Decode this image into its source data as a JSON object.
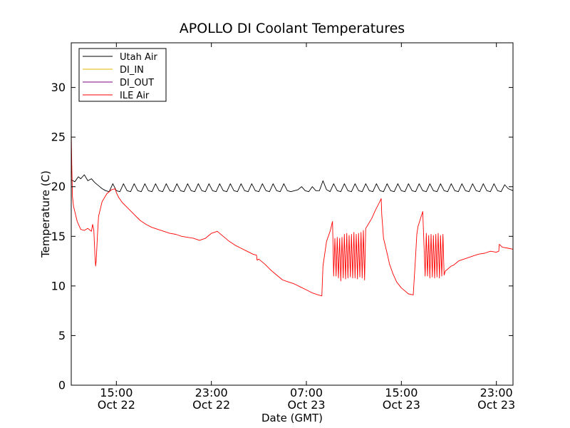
{
  "chart_data": {
    "type": "line",
    "title": "APOLLO DI Coolant Temperatures",
    "xlabel": "Date (GMT)",
    "ylabel": "Temperature (C)",
    "x_unit": "hours since Oct 22 00:00 GMT",
    "xlim": [
      11.2,
      48.4
    ],
    "ylim": [
      0,
      34.5
    ],
    "yticks": [
      0,
      5,
      10,
      15,
      20,
      25,
      30
    ],
    "xticks": [
      {
        "x": 15,
        "time": "15:00",
        "date": "Oct 22"
      },
      {
        "x": 23,
        "time": "23:00",
        "date": "Oct 22"
      },
      {
        "x": 31,
        "time": "07:00",
        "date": "Oct 23"
      },
      {
        "x": 39,
        "time": "15:00",
        "date": "Oct 23"
      },
      {
        "x": 47,
        "time": "23:00",
        "date": "Oct 23"
      }
    ],
    "grid": false,
    "legend_position": "top-left",
    "series": [
      {
        "name": "Utah Air",
        "color": "#000000",
        "x": [
          11.2,
          11.5,
          11.8,
          12.0,
          12.3,
          12.6,
          12.9,
          13.2,
          13.5,
          13.8,
          14.1,
          14.4,
          14.7,
          15.0,
          15.3,
          15.6,
          15.9,
          16.2,
          16.5,
          16.8,
          17.1,
          17.4,
          17.7,
          18.0,
          18.3,
          18.6,
          18.9,
          19.2,
          19.5,
          19.8,
          20.1,
          20.4,
          20.7,
          21.0,
          21.3,
          21.6,
          21.9,
          22.2,
          22.5,
          22.8,
          23.1,
          23.4,
          23.7,
          24.0,
          24.3,
          24.6,
          24.9,
          25.2,
          25.5,
          25.8,
          26.1,
          26.4,
          26.7,
          27.0,
          27.3,
          27.6,
          27.9,
          28.2,
          28.5,
          28.8,
          29.1,
          29.4,
          29.7,
          30.0,
          30.3,
          30.6,
          30.9,
          31.2,
          31.5,
          31.8,
          32.1,
          32.4,
          32.7,
          33.0,
          33.3,
          33.6,
          33.9,
          34.2,
          34.5,
          34.8,
          35.1,
          35.4,
          35.7,
          36.0,
          36.3,
          36.6,
          36.9,
          37.2,
          37.5,
          37.8,
          38.1,
          38.4,
          38.7,
          39.0,
          39.3,
          39.6,
          39.9,
          40.2,
          40.5,
          40.8,
          41.1,
          41.4,
          41.7,
          42.0,
          42.3,
          42.6,
          42.9,
          43.2,
          43.5,
          43.8,
          44.1,
          44.4,
          44.7,
          45.0,
          45.3,
          45.6,
          45.9,
          46.2,
          46.5,
          46.8,
          47.1,
          47.4,
          47.7,
          48.0,
          48.4
        ],
        "y": [
          20.7,
          20.5,
          21.0,
          20.8,
          21.2,
          20.6,
          20.8,
          20.4,
          20.1,
          19.8,
          19.6,
          19.5,
          20.3,
          19.6,
          19.5,
          20.3,
          19.6,
          19.5,
          20.3,
          19.6,
          19.5,
          20.3,
          19.6,
          19.5,
          20.3,
          19.6,
          19.5,
          20.3,
          19.6,
          19.5,
          20.3,
          19.6,
          19.5,
          20.3,
          19.6,
          19.5,
          20.3,
          19.6,
          19.5,
          20.3,
          19.6,
          19.5,
          20.3,
          19.6,
          19.5,
          20.3,
          19.6,
          19.5,
          20.3,
          19.6,
          19.5,
          20.3,
          19.6,
          19.5,
          20.3,
          19.6,
          19.5,
          20.3,
          19.6,
          19.5,
          20.3,
          19.6,
          19.5,
          19.6,
          19.7,
          20.0,
          19.6,
          19.5,
          20.0,
          19.6,
          19.6,
          20.6,
          19.7,
          19.5,
          20.3,
          19.6,
          19.5,
          20.3,
          19.6,
          19.5,
          20.3,
          19.6,
          19.5,
          20.3,
          19.6,
          19.5,
          20.3,
          19.6,
          19.5,
          20.3,
          19.6,
          19.5,
          20.3,
          19.6,
          19.5,
          20.3,
          19.6,
          19.5,
          20.3,
          19.6,
          19.5,
          20.3,
          19.6,
          19.5,
          20.3,
          19.6,
          19.5,
          20.3,
          19.6,
          19.5,
          20.3,
          19.6,
          19.5,
          20.3,
          19.6,
          19.5,
          20.3,
          19.6,
          19.5,
          20.3,
          19.6,
          19.5,
          20.2,
          19.8,
          19.6
        ]
      },
      {
        "name": "DI_IN",
        "color": "#e6b400",
        "x": [],
        "y": []
      },
      {
        "name": "DI_OUT",
        "color": "#7f007f",
        "x": [],
        "y": []
      },
      {
        "name": "ILE Air",
        "color": "#ff0000",
        "x": [
          11.2,
          11.25,
          11.3,
          11.4,
          11.5,
          11.7,
          12.0,
          12.3,
          12.6,
          12.8,
          12.9,
          13.0,
          13.1,
          13.2,
          13.25,
          13.3,
          13.4,
          13.5,
          13.8,
          14.2,
          14.6,
          14.9,
          15.0,
          15.2,
          15.5,
          16.0,
          16.5,
          17.0,
          17.5,
          18.0,
          18.5,
          19.0,
          19.5,
          20.0,
          20.5,
          21.0,
          21.5,
          22.0,
          22.5,
          23.0,
          23.5,
          24.0,
          24.5,
          25.0,
          25.5,
          26.0,
          26.5,
          26.8,
          26.85,
          27.0,
          27.5,
          28.0,
          28.5,
          29.0,
          29.5,
          30.0,
          30.5,
          31.0,
          31.5,
          32.0,
          32.3,
          32.4,
          32.7,
          33.0,
          33.1,
          33.2,
          33.3,
          33.4,
          33.5,
          33.6,
          33.7,
          33.8,
          33.9,
          34.0,
          34.1,
          34.2,
          34.3,
          34.4,
          34.5,
          34.6,
          34.7,
          34.8,
          34.9,
          35.0,
          35.1,
          35.2,
          35.3,
          35.4,
          35.5,
          35.6,
          35.7,
          35.8,
          35.9,
          36.0,
          36.2,
          36.5,
          36.8,
          37.1,
          37.3,
          37.35,
          37.5,
          37.8,
          38.0,
          38.3,
          38.6,
          39.0,
          39.3,
          39.6,
          40.0,
          40.2,
          40.3,
          40.4,
          40.8,
          41.0,
          41.1,
          41.2,
          41.3,
          41.4,
          41.5,
          41.6,
          41.7,
          41.8,
          41.9,
          42.0,
          42.1,
          42.2,
          42.3,
          42.4,
          42.5,
          42.6,
          42.7,
          42.8,
          43.0,
          43.2,
          43.4,
          43.6,
          43.8,
          44.0,
          44.5,
          45.0,
          45.5,
          46.0,
          46.5,
          47.0,
          47.2,
          47.25,
          47.5,
          48.0,
          48.4
        ],
        "y": [
          25.5,
          22.0,
          19.0,
          18.0,
          17.5,
          16.5,
          15.7,
          15.6,
          15.8,
          15.6,
          15.5,
          16.2,
          15.6,
          13.0,
          12.0,
          12.5,
          15.0,
          17.0,
          18.5,
          19.3,
          19.7,
          19.8,
          19.4,
          18.9,
          18.4,
          17.8,
          17.2,
          16.6,
          16.2,
          15.9,
          15.7,
          15.5,
          15.3,
          15.2,
          15.0,
          14.9,
          14.8,
          14.6,
          14.8,
          15.3,
          15.5,
          15.0,
          14.5,
          14.1,
          13.8,
          13.5,
          13.2,
          13.1,
          12.6,
          12.7,
          12.2,
          11.6,
          11.1,
          10.6,
          10.4,
          10.2,
          9.9,
          9.6,
          9.3,
          9.1,
          9.0,
          12.0,
          14.5,
          15.5,
          16.0,
          16.5,
          11.0,
          14.8,
          11.0,
          14.9,
          10.8,
          14.8,
          10.5,
          14.9,
          10.8,
          15.2,
          10.7,
          15.3,
          10.8,
          15.1,
          10.9,
          15.2,
          10.8,
          15.4,
          10.8,
          15.2,
          10.7,
          15.3,
          10.9,
          15.4,
          10.8,
          15.6,
          10.6,
          15.8,
          16.2,
          16.8,
          17.6,
          18.3,
          18.8,
          17.2,
          14.8,
          13.3,
          12.2,
          11.2,
          10.4,
          9.8,
          9.5,
          9.2,
          9.1,
          13.0,
          15.2,
          16.0,
          17.5,
          11.0,
          15.3,
          11.0,
          15.1,
          10.8,
          15.2,
          10.9,
          15.1,
          10.8,
          15.2,
          10.9,
          15.3,
          10.8,
          15.1,
          11.0,
          15.2,
          11.1,
          11.5,
          11.6,
          11.8,
          12.0,
          12.1,
          12.3,
          12.5,
          12.6,
          12.8,
          13.0,
          13.2,
          13.3,
          13.5,
          13.4,
          13.5,
          14.2,
          13.9,
          13.8,
          13.7
        ]
      }
    ]
  }
}
